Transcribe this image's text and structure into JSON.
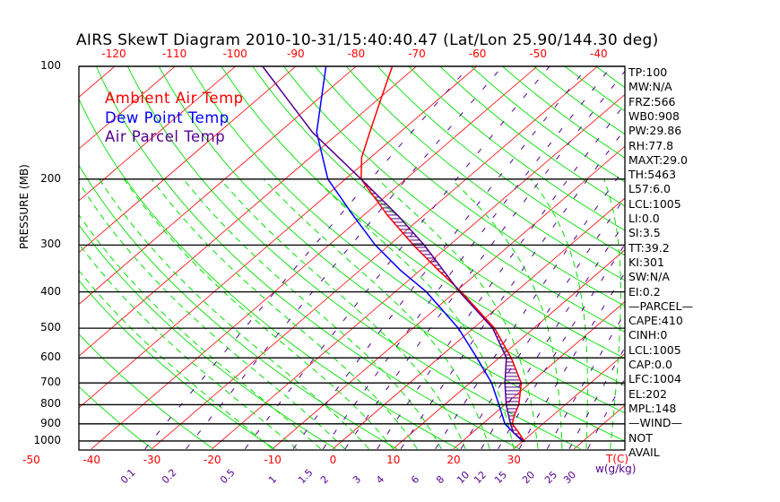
{
  "title": "AIRS SkewT Diagram 2010-10-31/15:40:40.47 (Lat/Lon 25.90/144.30 deg)",
  "colors": {
    "temp": "#ff0000",
    "dew": "#0000ff",
    "parcel": "#55008f",
    "dry": "#00e000",
    "moist": "#00e000",
    "mixing": "#55008f",
    "isobar": "#000000"
  },
  "legend": [
    {
      "label": "Ambient Air Temp",
      "color": "#ff0000"
    },
    {
      "label": "Dew Point Temp",
      "color": "#0000ff"
    },
    {
      "label": "Air Parcel Temp",
      "color": "#55008f"
    }
  ],
  "indices": [
    "TP:100",
    "MW:N/A",
    "FRZ:566",
    "WB0:908",
    "PW:29.86",
    "RH:77.8",
    "MAXT:29.0",
    "TH:5463",
    "L57:6.0",
    "LCL:1005",
    "LI:0.0",
    "SI:3.5",
    "TT:39.2",
    "KI:301",
    "SW:N/A",
    "EI:0.2",
    "—PARCEL—",
    "CAPE:410",
    "CINH:0",
    "LCL:1005",
    "CAP:0.0",
    "LFC:1004",
    "EL:202",
    "MPL:148",
    "—WIND—",
    "NOT",
    "AVAIL"
  ],
  "chart_data": {
    "type": "line",
    "title": "AIRS SkewT Diagram 2010-10-31/15:40:40.47 (Lat/Lon 25.90/144.30 deg)",
    "ylabel": "PRESSURE (MB)",
    "xlabel": "T(C)",
    "mixing_label": "w(g/kg)",
    "ylim": [
      1050,
      100
    ],
    "pressure_ticks": [
      "100",
      "200",
      "300",
      "400",
      "500",
      "600",
      "700",
      "800",
      "900",
      "1000"
    ],
    "top_temp_ticks": [
      "-120",
      "-110",
      "-100",
      "-90",
      "-80",
      "-70",
      "-60",
      "-50",
      "-40"
    ],
    "bottom_temp_ticks": [
      "-50",
      "-40",
      "-30",
      "-20",
      "-10",
      "0",
      "10",
      "20",
      "30"
    ],
    "mixing_ratio_ticks": [
      "0.1",
      "0.2",
      "0.5",
      "1",
      "1.5",
      "2",
      "3",
      "4",
      "6",
      "8",
      "10",
      "12",
      "15",
      "20",
      "25",
      "30"
    ],
    "series": [
      {
        "name": "Ambient Air Temp",
        "p": [
          100,
          120,
          150,
          175,
          200,
          250,
          300,
          350,
          400,
          500,
          600,
          700,
          800,
          850,
          900,
          950,
          1005
        ],
        "t": [
          -74,
          -70,
          -65,
          -61.5,
          -57.4,
          -46,
          -36,
          -27,
          -19,
          -6.5,
          2,
          8.5,
          12.3,
          13.5,
          14.9,
          17.7,
          20.4
        ]
      },
      {
        "name": "Dew Point Temp",
        "p": [
          100,
          150,
          200,
          250,
          300,
          350,
          400,
          500,
          600,
          700,
          800,
          900,
          950,
          1005
        ],
        "t": [
          -85,
          -73.8,
          -62.9,
          -51.7,
          -42.3,
          -33.3,
          -24.8,
          -12.5,
          -3.7,
          3.6,
          9,
          13.7,
          16.8,
          20.2
        ]
      },
      {
        "name": "Air Parcel Temp",
        "p": [
          100,
          150,
          200,
          250,
          300,
          400,
          500,
          600,
          700,
          800,
          900,
          950,
          1005
        ],
        "t": [
          -95.5,
          -74.5,
          -57.4,
          -44.3,
          -34.2,
          -19.3,
          -6.8,
          1.2,
          5.8,
          10.2,
          14.6,
          16.8,
          20.4
        ]
      }
    ]
  }
}
